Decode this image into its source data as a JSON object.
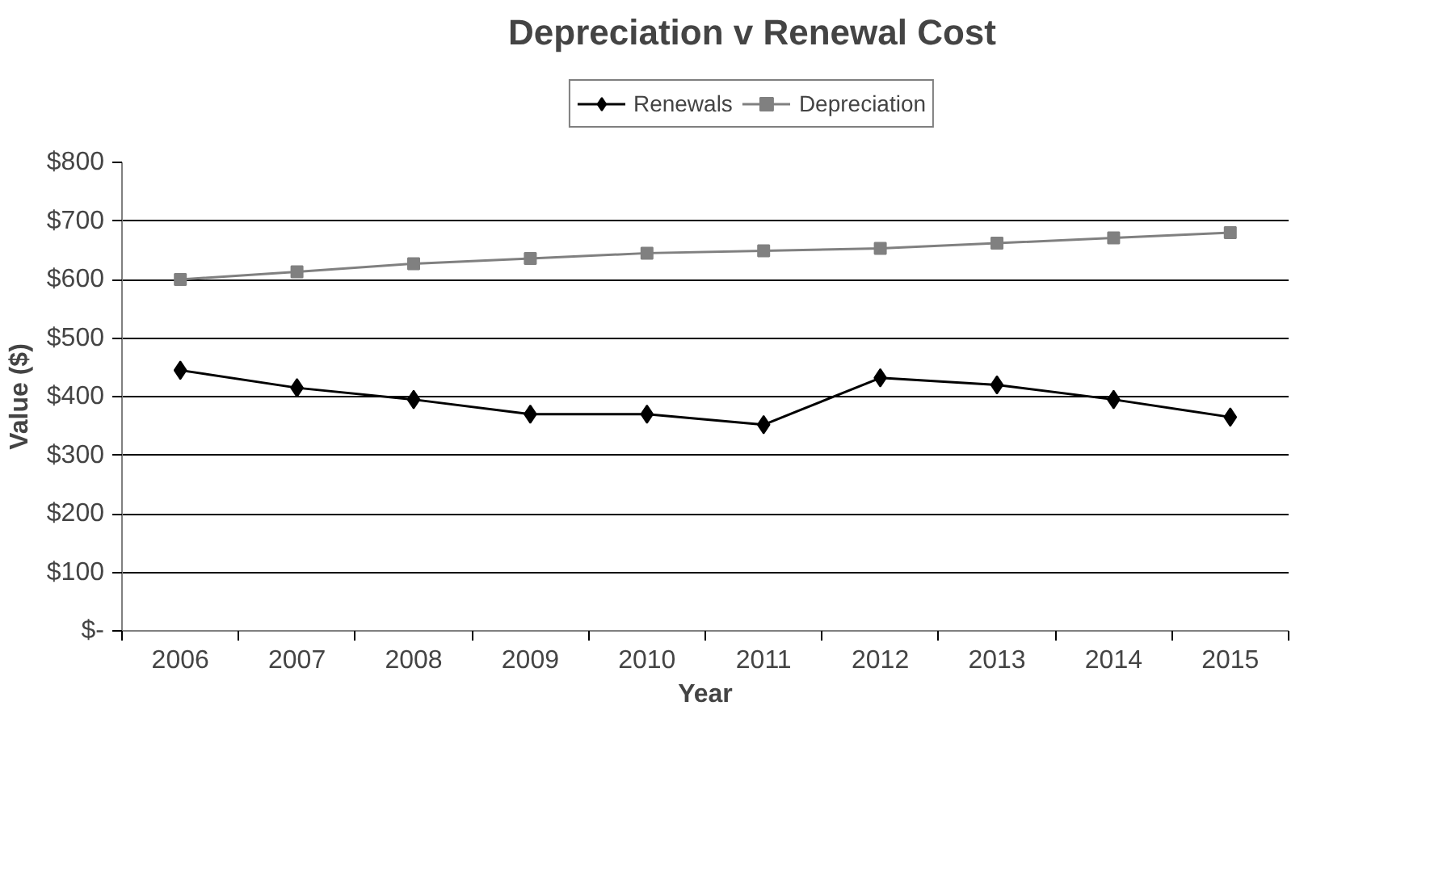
{
  "chart_data": {
    "type": "line",
    "title": "Depreciation v Renewal Cost",
    "xlabel": "Year",
    "ylabel": "Value ($)",
    "categories": [
      "2006",
      "2007",
      "2008",
      "2009",
      "2010",
      "2011",
      "2012",
      "2013",
      "2014",
      "2015"
    ],
    "series": [
      {
        "name": "Renewals",
        "color": "#000000",
        "marker": "diamond",
        "values": [
          445,
          415,
          395,
          370,
          370,
          352,
          432,
          420,
          395,
          365
        ]
      },
      {
        "name": "Depreciation",
        "color": "#808080",
        "marker": "square",
        "values": [
          600,
          613,
          627,
          636,
          645,
          649,
          653,
          662,
          671,
          680
        ]
      }
    ],
    "ylim": [
      0,
      800
    ],
    "yticks": [
      {
        "value": 0,
        "label": "$-"
      },
      {
        "value": 100,
        "label": "$100"
      },
      {
        "value": 200,
        "label": "$200"
      },
      {
        "value": 300,
        "label": "$300"
      },
      {
        "value": 400,
        "label": "$400"
      },
      {
        "value": 500,
        "label": "$500"
      },
      {
        "value": 600,
        "label": "$600"
      },
      {
        "value": 700,
        "label": "$700"
      },
      {
        "value": 800,
        "label": "$800"
      }
    ],
    "grid": "y",
    "legend": "top",
    "line_style": "solid"
  }
}
